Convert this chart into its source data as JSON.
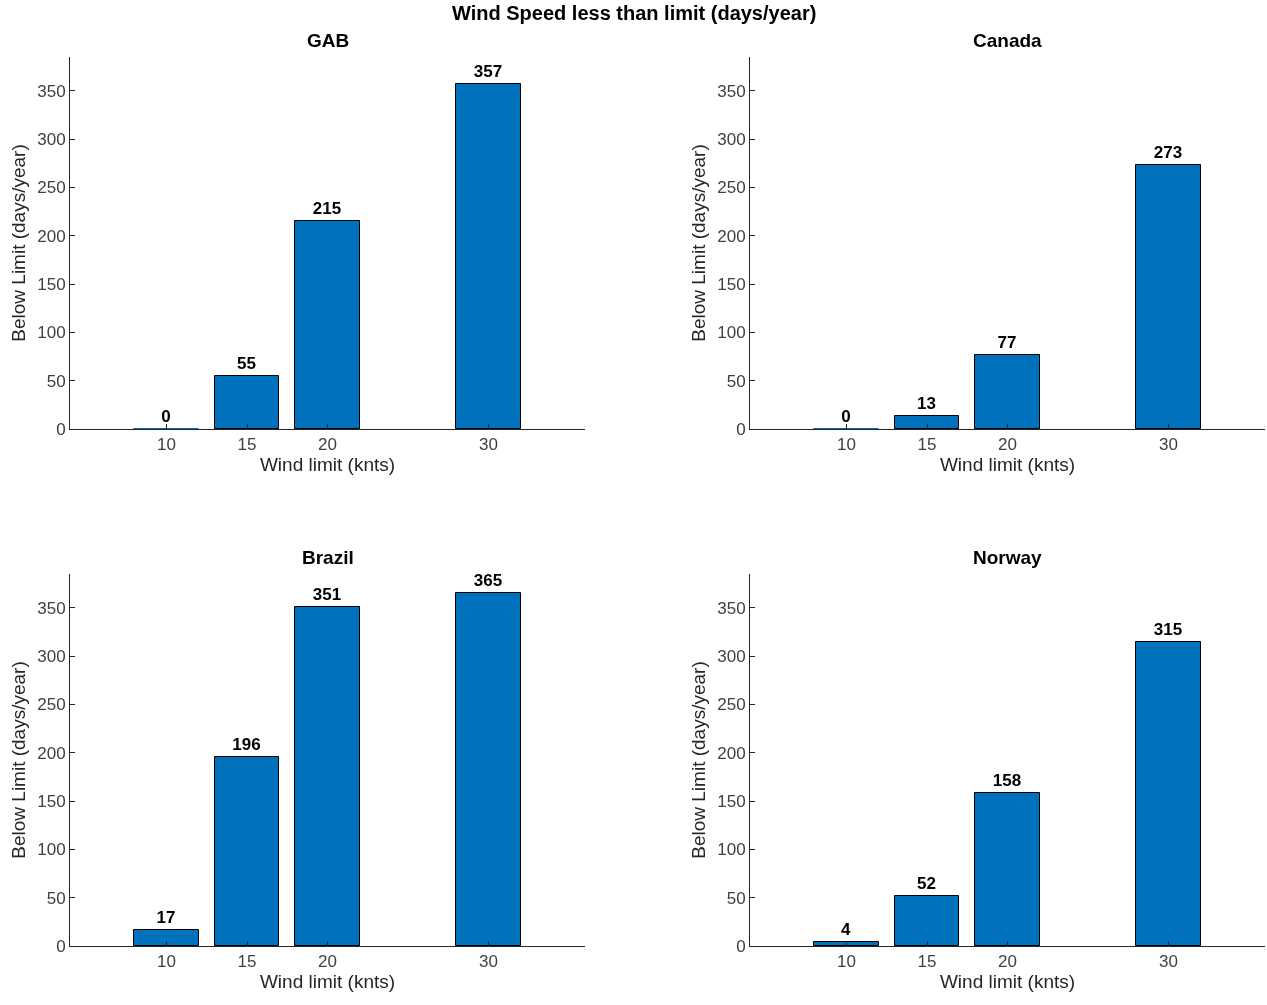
{
  "chart_data": [
    {
      "type": "bar",
      "title": "GAB",
      "annotations": [
        "Wind Speed less than limit (days/year)"
      ],
      "xlabel": "Wind limit (knts)",
      "ylabel": "Below Limit (days/year)",
      "x": [
        10,
        15,
        20,
        30
      ],
      "values": [
        0,
        55,
        215,
        357
      ],
      "color": "#0072bd",
      "xlim": [
        4,
        36
      ],
      "xticks": [
        10,
        15,
        20,
        30
      ],
      "ylim": [
        0,
        385
      ],
      "yticks": [
        0,
        50,
        100,
        150,
        200,
        250,
        300,
        350
      ],
      "data_labels": true
    },
    {
      "type": "bar",
      "title": "Canada",
      "xlabel": "Wind limit (knts)",
      "ylabel": "Below Limit (days/year)",
      "x": [
        10,
        15,
        20,
        30
      ],
      "values": [
        0,
        13,
        77,
        273
      ],
      "color": "#0072bd",
      "xlim": [
        4,
        36
      ],
      "xticks": [
        10,
        15,
        20,
        30
      ],
      "ylim": [
        0,
        385
      ],
      "yticks": [
        0,
        50,
        100,
        150,
        200,
        250,
        300,
        350
      ],
      "data_labels": true
    },
    {
      "type": "bar",
      "title": "Brazil",
      "xlabel": "Wind limit (knts)",
      "ylabel": "Below Limit (days/year)",
      "x": [
        10,
        15,
        20,
        30
      ],
      "values": [
        17,
        196,
        351,
        365
      ],
      "color": "#0072bd",
      "xlim": [
        4,
        36
      ],
      "xticks": [
        10,
        15,
        20,
        30
      ],
      "ylim": [
        0,
        385
      ],
      "yticks": [
        0,
        50,
        100,
        150,
        200,
        250,
        300,
        350
      ],
      "data_labels": true
    },
    {
      "type": "bar",
      "title": "Norway",
      "xlabel": "Wind limit (knts)",
      "ylabel": "Below Limit (days/year)",
      "x": [
        10,
        15,
        20,
        30
      ],
      "values": [
        4,
        52,
        158,
        315
      ],
      "color": "#0072bd",
      "xlim": [
        4,
        36
      ],
      "xticks": [
        10,
        15,
        20,
        30
      ],
      "ylim": [
        0,
        385
      ],
      "yticks": [
        0,
        50,
        100,
        150,
        200,
        250,
        300,
        350
      ],
      "data_labels": true
    }
  ]
}
